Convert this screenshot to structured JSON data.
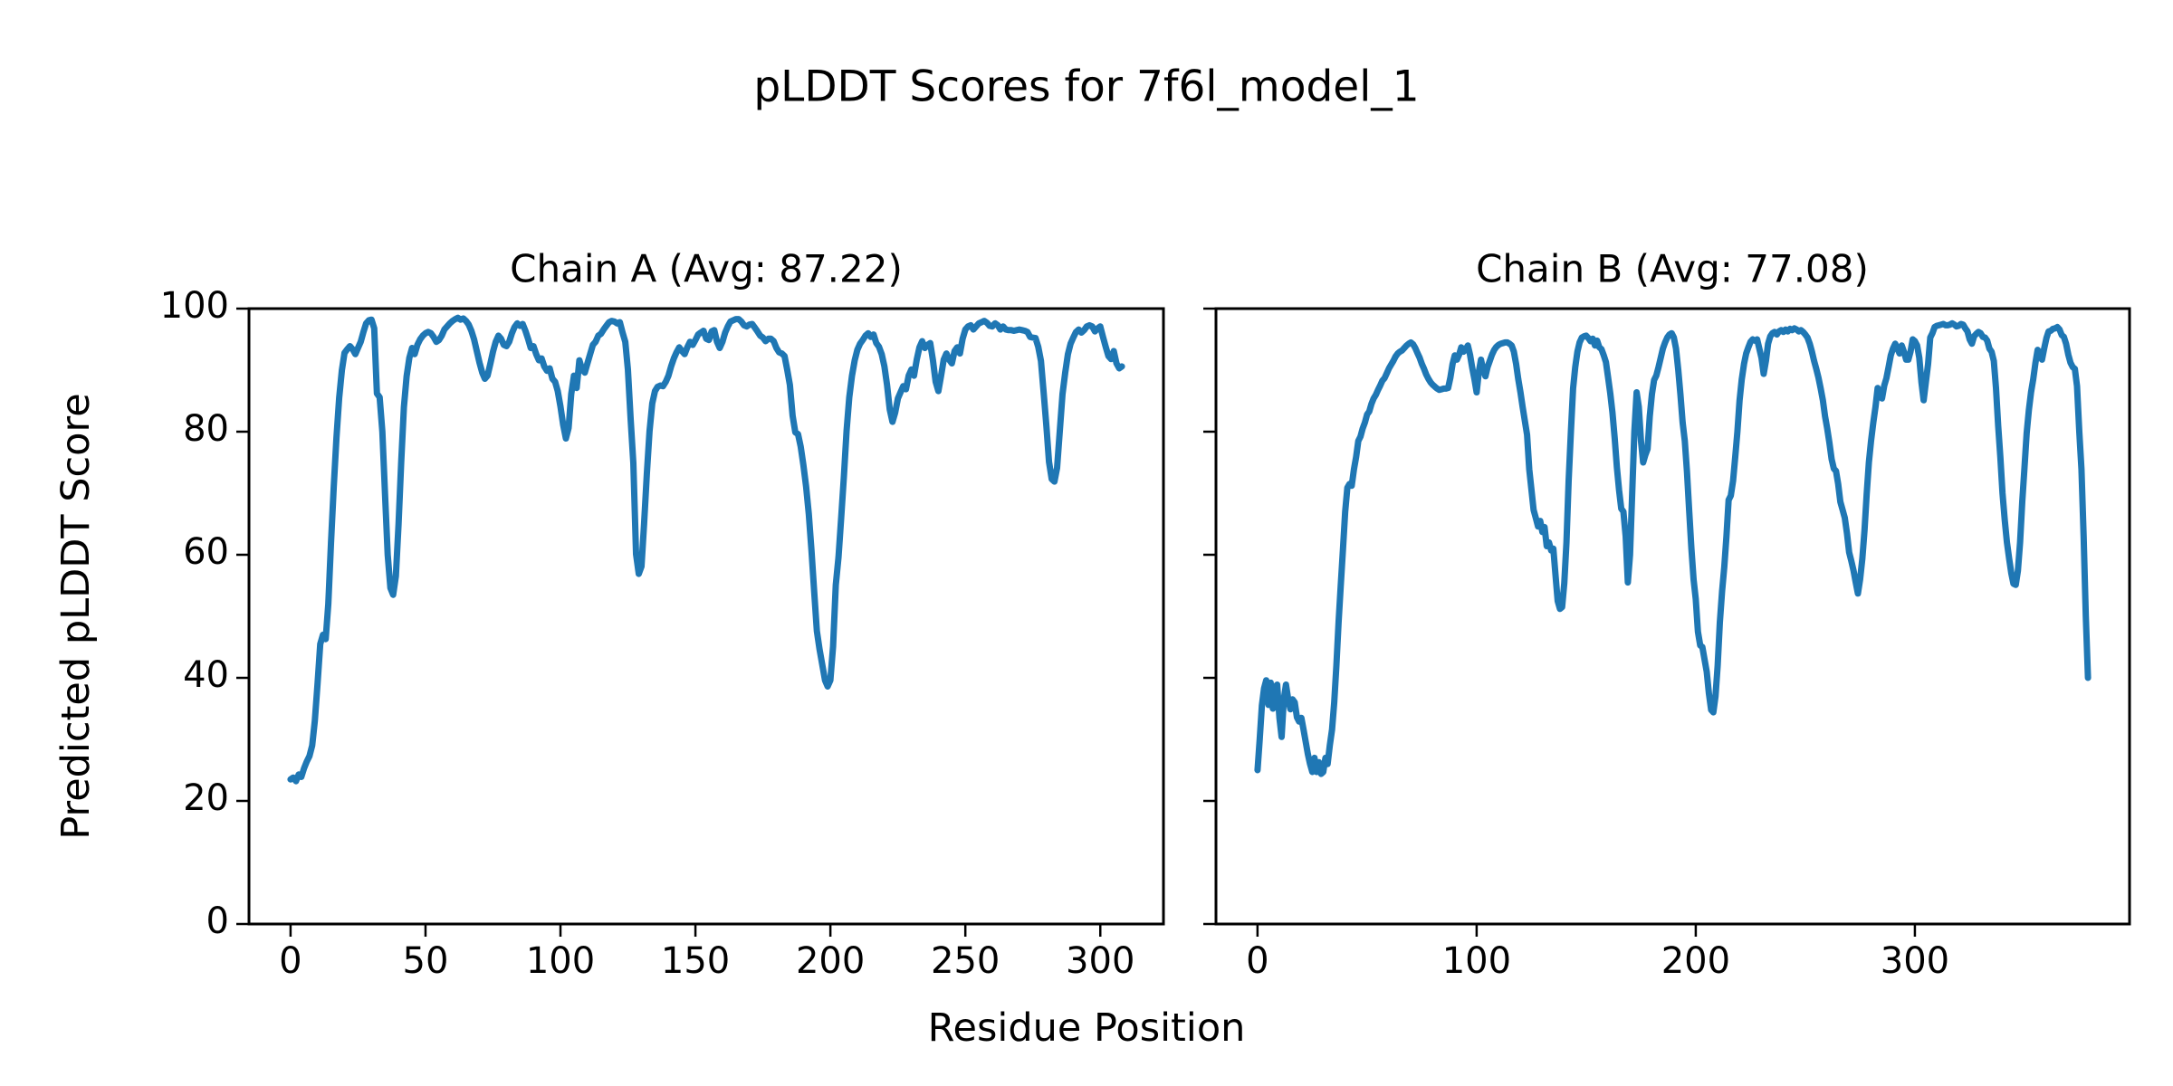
{
  "figure": {
    "title": "pLDDT Scores for 7f6l_model_1",
    "xlabel": "Residue Position",
    "ylabel": "Predicted pLDDT Score",
    "background_color": "#ffffff",
    "text_color": "#000000"
  },
  "chart_data": [
    {
      "type": "line",
      "chain": "A",
      "title": "Chain A (Avg: 87.22)",
      "average_plddt": 87.22,
      "line_color": "#1f77b4",
      "axis_color": "#000000",
      "grid": false,
      "legend": null,
      "ylim": [
        0,
        100
      ],
      "xlim": [
        -15.4,
        323.4
      ],
      "x_ticks": [
        0,
        50,
        100,
        150,
        200,
        250,
        300
      ],
      "y_ticks": [
        0,
        20,
        40,
        60,
        80,
        100
      ],
      "y_tick_labels_visible": true,
      "series": [
        {
          "name": "pLDDT",
          "x_start": 0,
          "x_step": 1,
          "values": [
            23.5,
            23.8,
            23.2,
            24.3,
            23.9,
            25.3,
            26.4,
            27.3,
            29,
            33,
            39,
            45.5,
            47,
            46.3,
            52,
            62,
            71,
            79,
            85.5,
            90,
            92.8,
            93.4,
            93.9,
            93.4,
            92.6,
            93.6,
            94.6,
            96.2,
            97.6,
            98.1,
            98.2,
            96.8,
            86.2,
            85.6,
            80,
            70,
            60,
            54.6,
            53.5,
            56.5,
            65,
            75,
            84,
            89,
            92,
            93.6,
            92.6,
            94.1,
            95,
            95.6,
            96,
            96.2,
            96,
            95.4,
            94.6,
            94.9,
            95.6,
            96.6,
            97.1,
            97.6,
            98,
            98.3,
            98.5,
            98.2,
            98.4,
            98,
            97.4,
            96.4,
            95,
            93.1,
            91.2,
            89.6,
            88.6,
            89.1,
            91,
            93,
            94.6,
            95.6,
            95.1,
            94.1,
            93.9,
            94.6,
            96,
            97,
            97.6,
            97.2,
            97.5,
            96.4,
            95.1,
            93.6,
            93.9,
            92.6,
            91.6,
            91.9,
            90.6,
            89.9,
            90.3,
            88.6,
            88.1,
            86.6,
            84.1,
            81.1,
            78.9,
            80.6,
            86.1,
            89.1,
            87.1,
            91.6,
            90.1,
            89.6,
            91.1,
            92.6,
            94.1,
            94.6,
            95.6,
            95.9,
            96.6,
            97.2,
            97.8,
            98,
            97.9,
            97.6,
            97.8,
            96.1,
            94.6,
            90.1,
            82.1,
            74.9,
            60.1,
            56.9,
            58.1,
            65.1,
            73.1,
            80.1,
            84.6,
            86.6,
            87.3,
            87.5,
            87.4,
            88.1,
            89.1,
            90.6,
            91.9,
            92.9,
            93.7,
            93.1,
            92.6,
            93.7,
            94.6,
            94.1,
            94.9,
            95.8,
            96.1,
            96.4,
            95.1,
            94.9,
            96.3,
            96.5,
            94.6,
            93.6,
            94.6,
            96.1,
            97.1,
            97.9,
            98.1,
            98.3,
            98.3,
            97.9,
            97.3,
            97.1,
            97.4,
            97.5,
            96.9,
            96.3,
            95.6,
            95.3,
            94.7,
            95.1,
            95.1,
            94.7,
            93.6,
            92.9,
            92.7,
            92.3,
            90.1,
            87.6,
            82.6,
            79.9,
            79.6,
            77.6,
            74.6,
            71.1,
            66.6,
            60.6,
            54.1,
            47.6,
            44.6,
            42.1,
            39.6,
            38.6,
            39.6,
            45.1,
            55.1,
            59.6,
            66.1,
            72.6,
            80.1,
            85.6,
            89.1,
            91.6,
            93.3,
            94.3,
            94.9,
            95.6,
            96,
            95.4,
            95.8,
            94.4,
            93.8,
            92.6,
            90.6,
            87.6,
            83.6,
            81.6,
            83.1,
            85.4,
            86.4,
            87.4,
            86.9,
            89.1,
            90.1,
            89.1,
            91.7,
            93.7,
            94.7,
            93.6,
            94.1,
            94.4,
            91.6,
            88.1,
            86.6,
            89.1,
            91.7,
            92.7,
            91.7,
            91.1,
            93.1,
            93.7,
            92.7,
            95.1,
            96.6,
            97.1,
            97.3,
            96.6,
            97.1,
            97.6,
            97.8,
            98,
            97.7,
            97.2,
            97.1,
            97.6,
            97.3,
            96.6,
            97.1,
            96.6,
            96.5,
            96.5,
            96.4,
            96.5,
            96.6,
            96.5,
            96.4,
            96.2,
            95.4,
            95.3,
            95.2,
            93.8,
            91.5,
            86.5,
            81.1,
            75.1,
            72.3,
            71.9,
            74.1,
            80.1,
            86.1,
            89.6,
            92.6,
            94.3,
            95.3,
            96.2,
            96.6,
            96.1,
            96.5,
            97.1,
            97.3,
            97.1,
            96.3,
            96.8,
            97.1,
            95.4,
            93.8,
            92.3,
            91.8,
            93.1,
            91.1,
            90.3,
            90.6
          ]
        }
      ]
    },
    {
      "type": "line",
      "chain": "B",
      "title": "Chain B (Avg: 77.08)",
      "average_plddt": 77.08,
      "line_color": "#1f77b4",
      "axis_color": "#000000",
      "grid": false,
      "legend": null,
      "ylim": [
        0,
        100
      ],
      "xlim": [
        -18.95,
        397.95
      ],
      "x_ticks": [
        0,
        100,
        200,
        300
      ],
      "y_ticks": [
        0,
        20,
        40,
        60,
        80,
        100
      ],
      "y_tick_labels_visible": false,
      "series": [
        {
          "name": "pLDDT",
          "x_start": 0,
          "x_step": 1,
          "values": [
            25,
            30,
            35.5,
            38.3,
            39.6,
            35.6,
            39.2,
            35,
            38.5,
            38.9,
            33.5,
            30.4,
            36.5,
            38.9,
            36.6,
            34.9,
            36.5,
            36,
            33.6,
            32.9,
            33.5,
            31.6,
            29.6,
            27.6,
            26,
            24.7,
            27,
            24.7,
            26.3,
            24.4,
            24.7,
            27,
            26,
            29,
            31.6,
            36,
            42,
            49,
            55,
            61,
            67,
            70.9,
            71.5,
            71.2,
            73.9,
            75.9,
            78.5,
            79.2,
            80.5,
            81.5,
            82.8,
            83.3,
            84.5,
            85.4,
            86,
            86.8,
            87.5,
            88.3,
            88.7,
            89.5,
            90.3,
            90.9,
            91.5,
            92.2,
            92.7,
            93,
            93.2,
            93.6,
            94,
            94.3,
            94.5,
            94.2,
            93.6,
            92.8,
            92,
            91,
            90.2,
            89.3,
            88.6,
            88,
            87.6,
            87.3,
            87,
            86.8,
            86.9,
            87,
            87,
            87.1,
            88.7,
            91,
            92.4,
            91.7,
            92.5,
            93.7,
            93,
            93.4,
            94,
            92.5,
            90.4,
            88.5,
            86.4,
            89.7,
            91.7,
            90.1,
            89,
            90.5,
            91.5,
            92.5,
            93.3,
            93.8,
            94.1,
            94.3,
            94.4,
            94.5,
            94.5,
            94.3,
            94,
            93,
            91,
            88.5,
            86.4,
            84,
            81.8,
            79.5,
            73.9,
            70.6,
            67.3,
            66,
            64.6,
            65.5,
            63.7,
            64.5,
            61.4,
            62,
            60.7,
            61,
            56.7,
            52.5,
            51.2,
            51.5,
            55.4,
            62,
            72,
            80,
            87,
            90.5,
            93,
            94.5,
            95.3,
            95.5,
            95.6,
            95.2,
            94.7,
            95.1,
            94,
            94.8,
            93.7,
            93.4,
            92.4,
            91.3,
            88.8,
            86.2,
            83.1,
            78.9,
            74.2,
            70.5,
            67.5,
            67,
            63,
            55.5,
            60,
            70,
            80,
            86.4,
            84,
            78.5,
            75,
            76.2,
            77.2,
            82.5,
            86.1,
            88.4,
            89.1,
            90.5,
            92,
            93.5,
            94.5,
            95.3,
            95.8,
            96,
            95.3,
            93.5,
            90,
            86,
            81.5,
            78.5,
            73.5,
            67,
            61,
            56,
            52.8,
            47.5,
            45.3,
            45,
            43,
            41,
            37.5,
            34.8,
            34.4,
            37,
            42,
            49,
            54.1,
            58,
            63,
            68.9,
            69.6,
            72,
            75.9,
            80,
            85.1,
            88.5,
            91,
            92.7,
            93.7,
            94.6,
            95,
            94.8,
            95,
            93.5,
            92,
            89.4,
            91.5,
            94.3,
            95.5,
            96,
            96.2,
            95.8,
            96.3,
            96.5,
            96.2,
            96.6,
            96.3,
            96.7,
            96.5,
            96.8,
            96.6,
            96.3,
            96.5,
            96.2,
            95.8,
            95.3,
            94.3,
            93,
            91.5,
            90.2,
            88.8,
            87,
            85.1,
            82.5,
            80.5,
            78.2,
            75.5,
            74,
            73.6,
            71.5,
            68.6,
            67.3,
            66,
            63.5,
            60.4,
            59,
            57.4,
            55.5,
            53.7,
            56,
            59.4,
            64,
            69.9,
            75,
            78.5,
            81.5,
            84,
            87.1,
            86,
            85.4,
            87.5,
            88.7,
            90.5,
            92.4,
            93.5,
            94.3,
            93.5,
            92.7,
            94,
            93,
            91.7,
            91.7,
            93,
            95,
            94.7,
            94,
            92,
            88,
            85.1,
            88,
            91,
            95.3,
            96,
            97,
            97.2,
            97.3,
            97.4,
            97.5,
            97.3,
            97.3,
            97.4,
            97.6,
            97.4,
            97.1,
            97.2,
            97.5,
            97.4,
            96.8,
            96.3,
            95,
            94.3,
            95.5,
            95.9,
            96.2,
            96,
            95.4,
            95.3,
            94.8,
            93.5,
            93,
            91.5,
            87.1,
            81,
            75.9,
            70,
            65.6,
            62,
            59.4,
            57,
            55.3,
            55.1,
            57.4,
            62,
            68.6,
            74,
            79.8,
            83.5,
            86.4,
            88.5,
            91.2,
            93.3,
            92.8,
            91.7,
            93.5,
            95.2,
            96.3,
            96.4,
            96.7,
            96.8,
            97,
            96.6,
            95.7,
            95.4,
            94.3,
            92.5,
            91.2,
            90.5,
            90.2,
            87.4,
            80,
            73.9,
            63,
            50,
            40
          ]
        }
      ]
    }
  ]
}
